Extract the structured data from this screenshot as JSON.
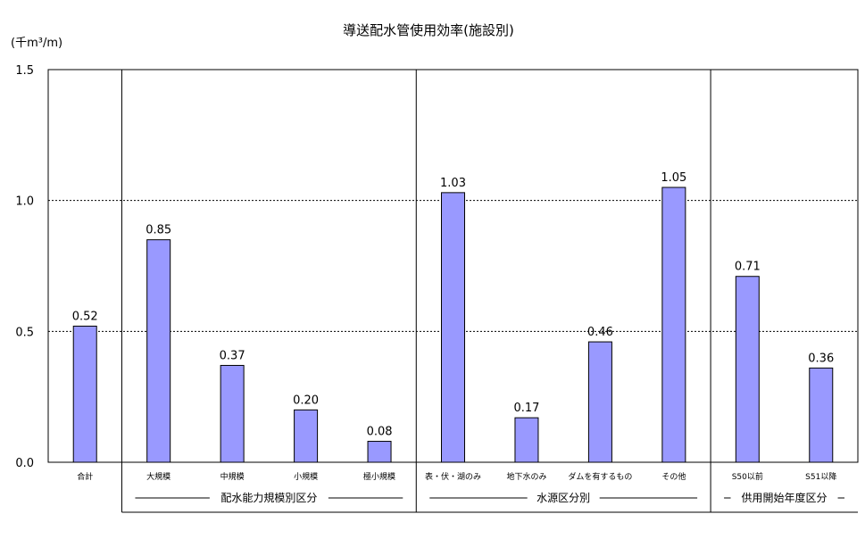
{
  "chart_data": {
    "type": "bar",
    "title": "導送配水管使用効率(施設別)",
    "ylabel": "(千m³/m)",
    "xlabel": "",
    "ylim": [
      0,
      1.5
    ],
    "yticks": [
      "0.0",
      "0.5",
      "1.0",
      "1.5"
    ],
    "categories": [
      "合計",
      "大規模",
      "中規模",
      "小規模",
      "極小規模",
      "表・伏・湖のみ",
      "地下水のみ",
      "ダムを有するもの",
      "その他",
      "S50以前",
      "S51以降"
    ],
    "values": [
      0.52,
      0.85,
      0.37,
      0.2,
      0.08,
      1.03,
      0.17,
      0.46,
      1.05,
      0.71,
      0.36
    ],
    "value_labels": [
      "0.52",
      "0.85",
      "0.37",
      "0.20",
      "0.08",
      "1.03",
      "0.17",
      "0.46",
      "1.05",
      "0.71",
      "0.36"
    ],
    "groups": [
      {
        "label": "",
        "start": 0,
        "end": 0
      },
      {
        "label": "配水能力規模別区分",
        "start": 1,
        "end": 4
      },
      {
        "label": "水源区分別",
        "start": 5,
        "end": 8
      },
      {
        "label": "供用開始年度区分",
        "start": 9,
        "end": 10
      }
    ],
    "grid": {
      "horizontal_dotted": [
        0.5,
        1.0
      ]
    },
    "bar_color": "#9999ff",
    "bar_edge_color": "#000000"
  }
}
